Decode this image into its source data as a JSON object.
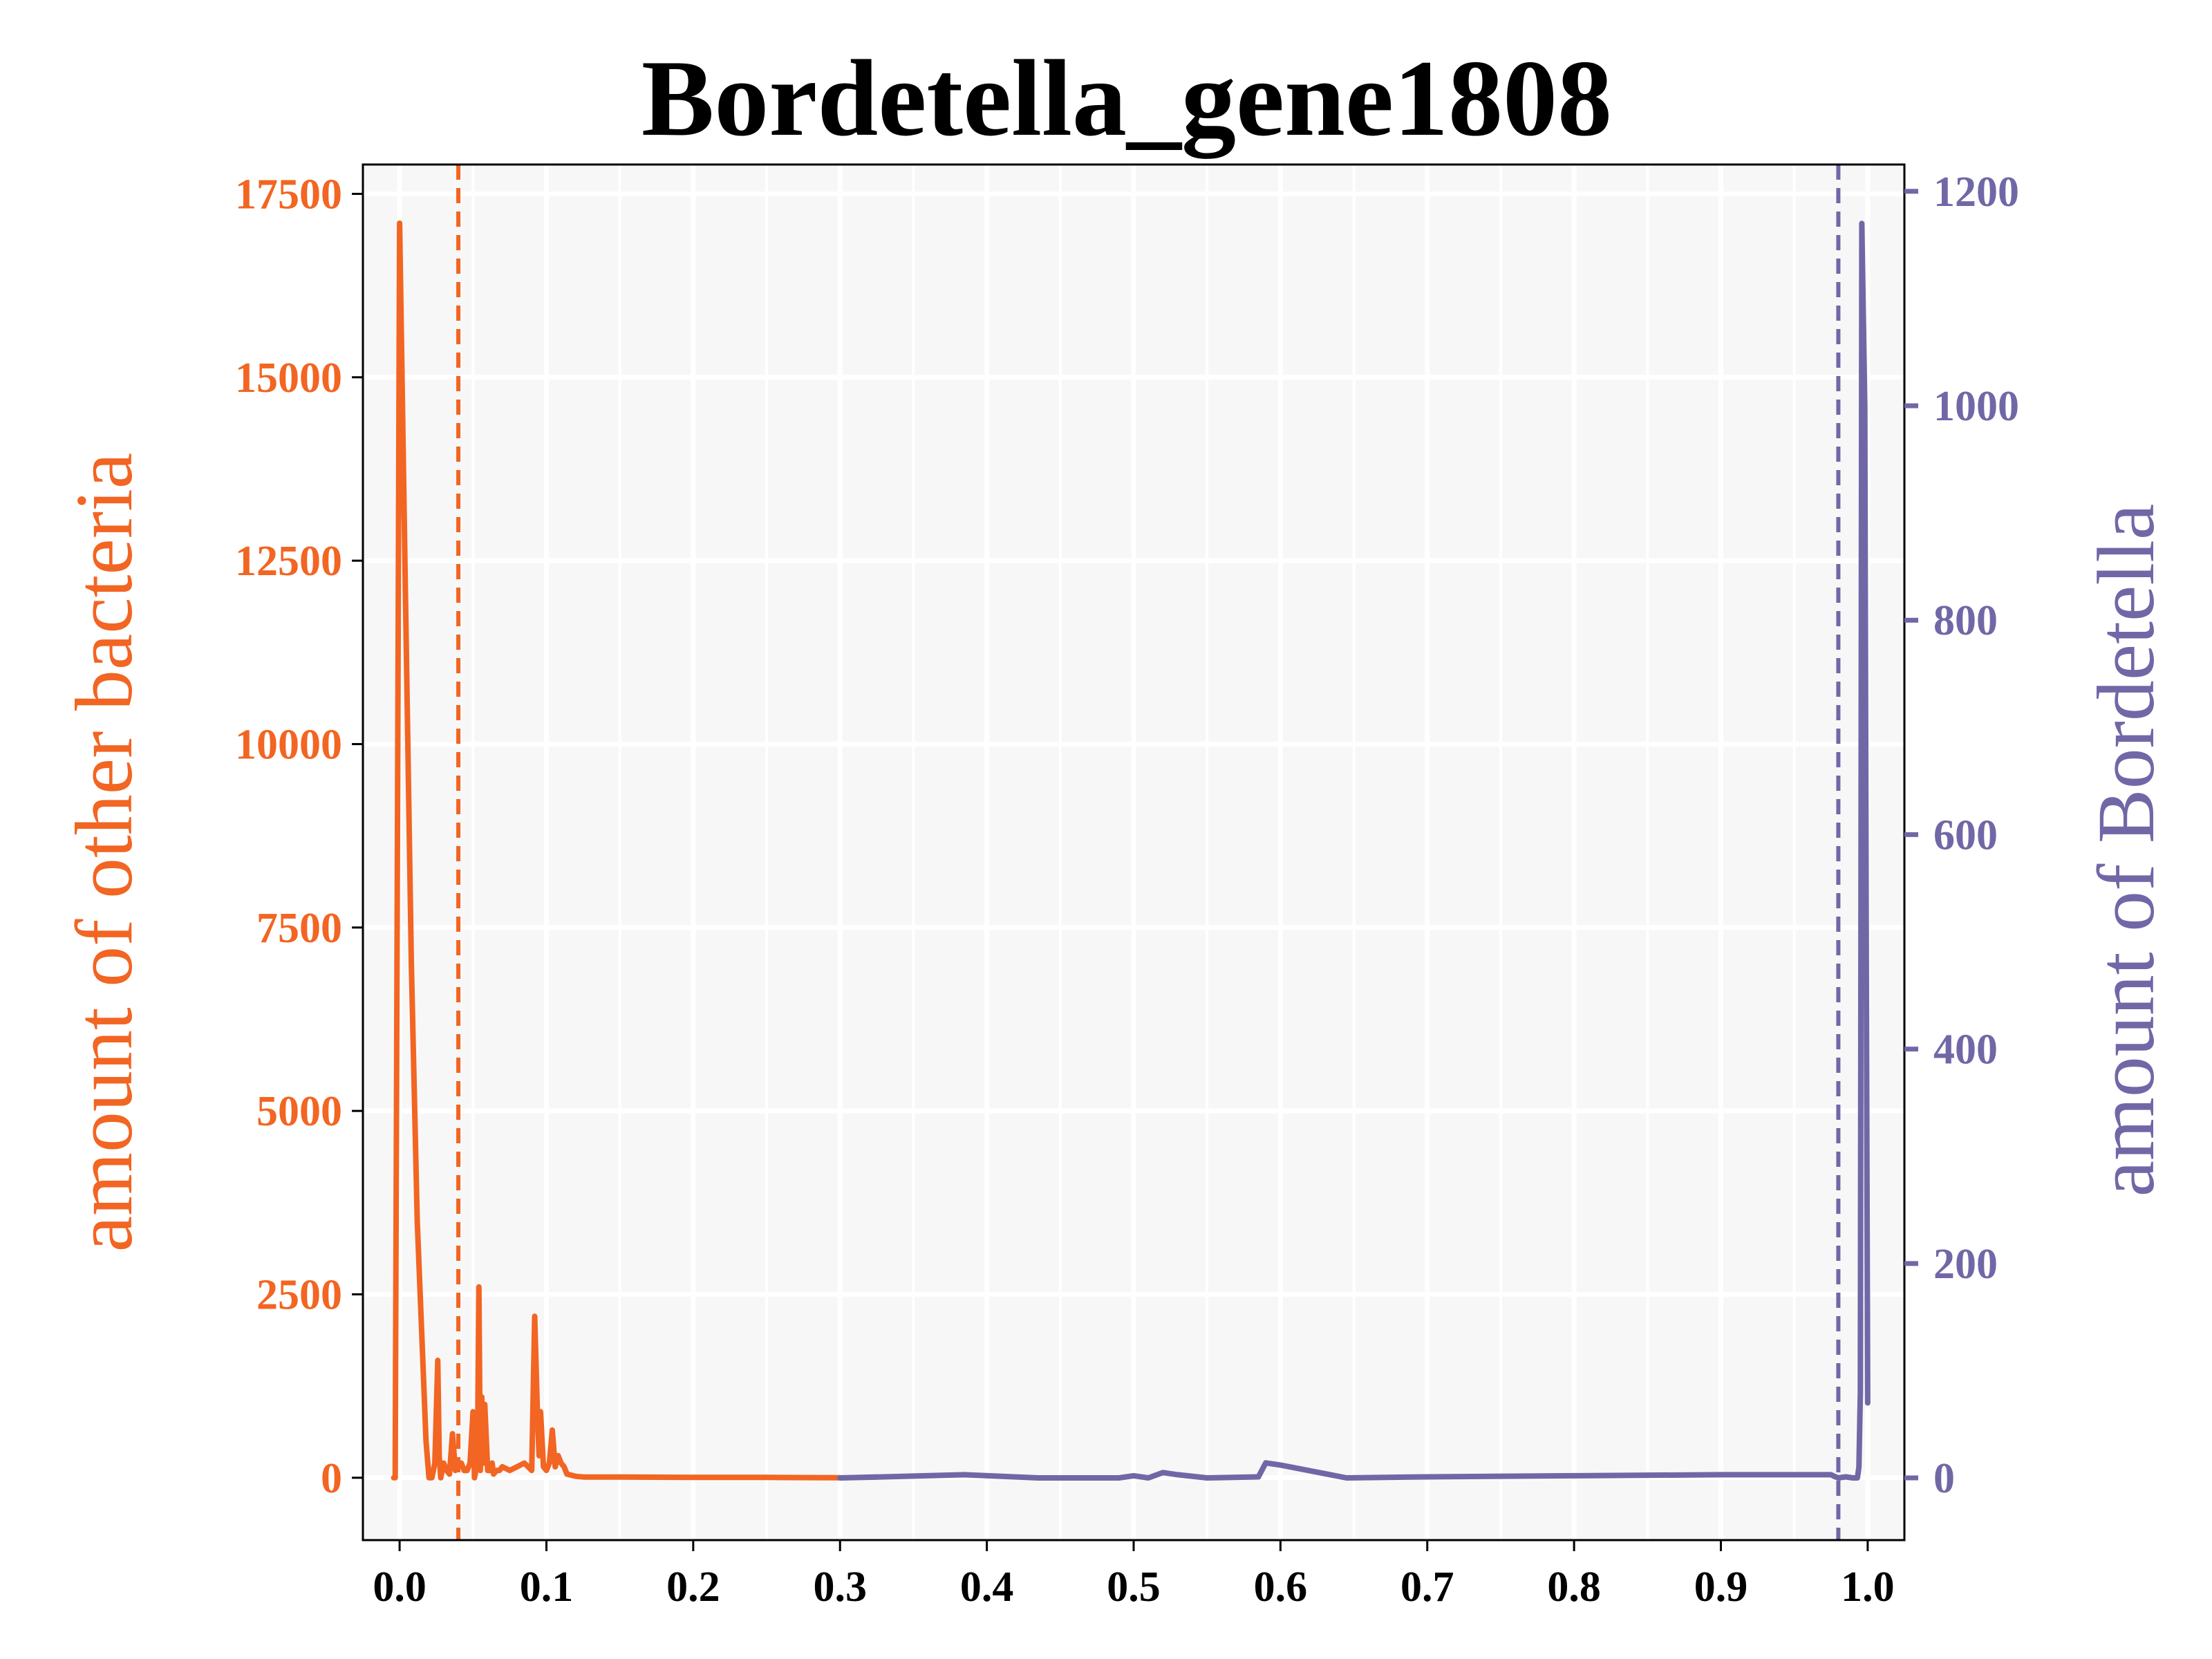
{
  "chart_data": {
    "type": "line",
    "title": "Bordetella_gene1808",
    "xlabel": "",
    "ylabel_left": "amount of other bacteria",
    "ylabel_right": "amount of Bordetella",
    "xlim": [
      -0.025,
      1.025
    ],
    "ylim_left": [
      -850,
      17900
    ],
    "ylim_right": [
      -58,
      1225
    ],
    "x_ticks": [
      0.0,
      0.1,
      0.2,
      0.3,
      0.4,
      0.5,
      0.6,
      0.7,
      0.8,
      0.9,
      1.0
    ],
    "x_tick_labels": [
      "0.0",
      "0.1",
      "0.2",
      "0.3",
      "0.4",
      "0.5",
      "0.6",
      "0.7",
      "0.8",
      "0.9",
      "1.0"
    ],
    "y_left_ticks": [
      0,
      2500,
      5000,
      7500,
      10000,
      12500,
      15000,
      17500
    ],
    "y_left_tick_labels": [
      "0",
      "2500",
      "5000",
      "7500",
      "10000",
      "12500",
      "15000",
      "17500"
    ],
    "y_right_ticks": [
      0,
      200,
      400,
      600,
      800,
      1000,
      1200
    ],
    "y_right_tick_labels": [
      "0",
      "200",
      "400",
      "600",
      "800",
      "1000",
      "1200"
    ],
    "grid": true,
    "colors": {
      "left": "#f26522",
      "right": "#7068a6",
      "plot_background": "#f7f7f7",
      "grid": "#ffffff"
    },
    "vlines": [
      {
        "x": 0.04,
        "axis": "left",
        "style": "dashed"
      },
      {
        "x": 0.98,
        "axis": "right",
        "style": "dashed"
      }
    ],
    "series": [
      {
        "axis": "left",
        "x": [
          -0.004,
          -0.003,
          0.0,
          0.004,
          0.008,
          0.012,
          0.016,
          0.018,
          0.02,
          0.022,
          0.024,
          0.026,
          0.027,
          0.028,
          0.03,
          0.032,
          0.034,
          0.036,
          0.038,
          0.04,
          0.042,
          0.044,
          0.046,
          0.048,
          0.05,
          0.051,
          0.052,
          0.053,
          0.054,
          0.055,
          0.056,
          0.057,
          0.058,
          0.06,
          0.062,
          0.063,
          0.064,
          0.066,
          0.068,
          0.07,
          0.075,
          0.08,
          0.085,
          0.09,
          0.092,
          0.094,
          0.095,
          0.096,
          0.098,
          0.1,
          0.102,
          0.104,
          0.106,
          0.108,
          0.11,
          0.112,
          0.114,
          0.118,
          0.12,
          0.125,
          0.13,
          0.15,
          0.2,
          0.25,
          0.3
        ],
        "values": [
          0,
          0,
          17100,
          12000,
          7000,
          3500,
          1500,
          500,
          0,
          0,
          200,
          1600,
          300,
          0,
          200,
          100,
          50,
          600,
          100,
          150,
          200,
          100,
          100,
          200,
          900,
          0,
          100,
          200,
          2600,
          100,
          1100,
          200,
          1000,
          100,
          100,
          200,
          50,
          100,
          100,
          150,
          100,
          150,
          200,
          100,
          2200,
          800,
          300,
          900,
          150,
          100,
          200,
          650,
          150,
          300,
          200,
          150,
          50,
          30,
          20,
          10,
          10,
          10,
          5,
          5,
          0
        ]
      },
      {
        "axis": "right",
        "x": [
          0.3,
          0.33,
          0.385,
          0.435,
          0.49,
          0.5,
          0.51,
          0.52,
          0.53,
          0.55,
          0.585,
          0.59,
          0.6,
          0.645,
          0.7,
          0.8,
          0.9,
          0.975,
          0.978,
          0.98,
          0.985,
          0.99,
          0.993,
          0.994,
          0.995,
          0.996,
          0.998,
          0.999,
          1.0
        ],
        "values": [
          0,
          1,
          3,
          0,
          0,
          2,
          0,
          5,
          3,
          0,
          1,
          14,
          12,
          0,
          1,
          2,
          3,
          3,
          1,
          0,
          1,
          0,
          0,
          10,
          80,
          1170,
          1000,
          500,
          70
        ]
      }
    ]
  }
}
